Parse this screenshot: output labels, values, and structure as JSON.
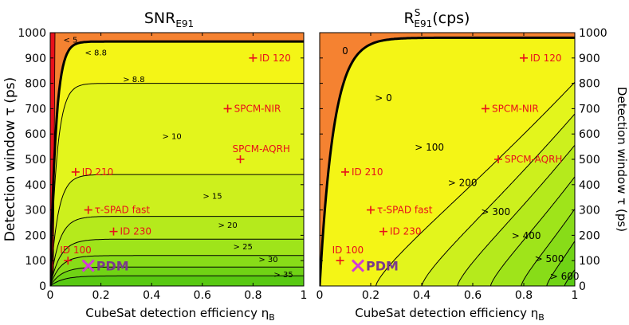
{
  "chart_data": [
    {
      "type": "contour",
      "title_main": "SNR",
      "title_sub": "E91",
      "xlabel_main": "CubeSat detection efficiency η",
      "xlabel_sub": "B",
      "ylabel": "Detection window τ (ps)",
      "xlim": [
        0,
        1
      ],
      "ylim": [
        0,
        1000
      ],
      "xticks": [
        "0",
        "0.2",
        "0.4",
        "0.6",
        "0.8",
        "1"
      ],
      "yticks": [
        "0",
        "100",
        "200",
        "300",
        "400",
        "500",
        "600",
        "700",
        "800",
        "900",
        "1000"
      ],
      "contour_labels": [
        {
          "text": "< 5",
          "x": 0.08,
          "y": 960
        },
        {
          "text": "< 8.8",
          "x": 0.18,
          "y": 910
        },
        {
          "text": "> 8.8",
          "x": 0.33,
          "y": 805
        },
        {
          "text": "> 10",
          "x": 0.48,
          "y": 580
        },
        {
          "text": "> 15",
          "x": 0.64,
          "y": 345
        },
        {
          "text": "> 20",
          "x": 0.7,
          "y": 230
        },
        {
          "text": "> 25",
          "x": 0.76,
          "y": 145
        },
        {
          "text": "> 30",
          "x": 0.86,
          "y": 95
        },
        {
          "text": "> 35",
          "x": 0.92,
          "y": 35
        }
      ],
      "detectors": [
        {
          "name": "ID 120",
          "x": 0.8,
          "y": 900
        },
        {
          "name": "SPCM-NIR",
          "x": 0.7,
          "y": 700
        },
        {
          "name": "SPCM-AQRH",
          "x": 0.75,
          "y": 500
        },
        {
          "name": "ID 210",
          "x": 0.1,
          "y": 450
        },
        {
          "name": "τ-SPAD fast",
          "x": 0.15,
          "y": 300
        },
        {
          "name": "ID 230",
          "x": 0.25,
          "y": 215
        },
        {
          "name": "ID 100",
          "x": 0.07,
          "y": 100
        }
      ],
      "pdm": {
        "name": "PDM",
        "x": 0.15,
        "y": 80
      }
    },
    {
      "type": "contour",
      "title_main": "R",
      "title_sup": "S",
      "title_sub": "E91",
      "title_units": "(cps)",
      "xlabel_main": "CubeSat detection efficiency η",
      "xlabel_sub": "B",
      "ylabel": "Detection window τ (ps)",
      "xlim": [
        0,
        1
      ],
      "ylim": [
        0,
        1000
      ],
      "xticks": [
        "0",
        "0.2",
        "0.4",
        "0.6",
        "0.8",
        "1"
      ],
      "yticks": [
        "0",
        "100",
        "200",
        "300",
        "400",
        "500",
        "600",
        "700",
        "800",
        "900",
        "1000"
      ],
      "contour_labels": [
        {
          "text": "0",
          "x": 0.1,
          "y": 915
        },
        {
          "text": "> 0",
          "x": 0.25,
          "y": 730
        },
        {
          "text": "> 100",
          "x": 0.43,
          "y": 535
        },
        {
          "text": "> 200",
          "x": 0.56,
          "y": 395
        },
        {
          "text": "> 300",
          "x": 0.69,
          "y": 280
        },
        {
          "text": "> 400",
          "x": 0.81,
          "y": 185
        },
        {
          "text": "> 500",
          "x": 0.9,
          "y": 95
        },
        {
          "text": "> 600",
          "x": 0.96,
          "y": 25
        }
      ],
      "detectors": [
        {
          "name": "ID 120",
          "x": 0.8,
          "y": 900
        },
        {
          "name": "SPCM-NIR",
          "x": 0.65,
          "y": 700
        },
        {
          "name": "SPCM-AQRH",
          "x": 0.7,
          "y": 500
        },
        {
          "name": "ID 210",
          "x": 0.1,
          "y": 450
        },
        {
          "name": "τ-SPAD fast",
          "x": 0.2,
          "y": 300
        },
        {
          "name": "ID 230",
          "x": 0.25,
          "y": 215
        },
        {
          "name": "ID 100",
          "x": 0.08,
          "y": 100
        }
      ],
      "pdm": {
        "name": "PDM",
        "x": 0.15,
        "y": 80
      }
    }
  ],
  "colors": {
    "orange": "#f58231",
    "red": "#e8101a",
    "yellow": "#f4f516",
    "bands": [
      "#e3f51c",
      "#cdf01d",
      "#b5ea1c",
      "#9fe41a",
      "#88dc18",
      "#70d315",
      "#58c912",
      "#42c00f"
    ],
    "marker": "#e8101a",
    "pdm": "#d23bd6",
    "pdm_text": "#7a3a8c"
  }
}
